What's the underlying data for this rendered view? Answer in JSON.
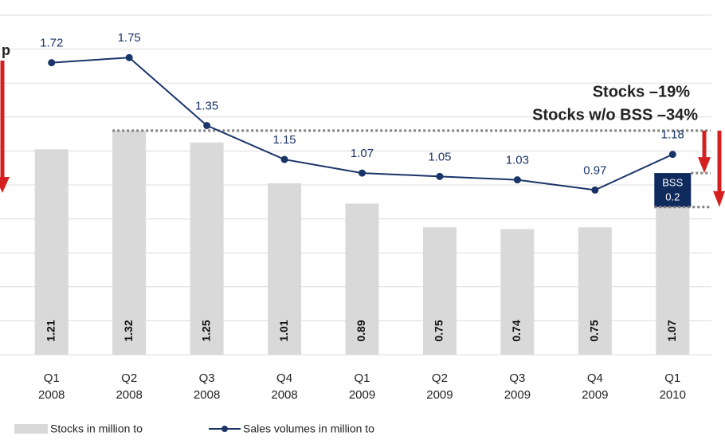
{
  "chart_data": {
    "type": "bar_line",
    "categories": [
      [
        "Q1",
        "2008"
      ],
      [
        "Q2",
        "2008"
      ],
      [
        "Q3",
        "2008"
      ],
      [
        "Q4",
        "2008"
      ],
      [
        "Q1",
        "2009"
      ],
      [
        "Q2",
        "2009"
      ],
      [
        "Q3",
        "2009"
      ],
      [
        "Q4",
        "2009"
      ],
      [
        "Q1",
        "2010"
      ]
    ],
    "series": [
      {
        "name": "Stocks in million to",
        "color": "#d9d9d9",
        "type": "bar",
        "values": [
          1.21,
          1.32,
          1.25,
          1.01,
          0.89,
          0.75,
          0.74,
          0.75,
          1.07
        ]
      },
      {
        "name": "Sales volumes in million to",
        "color": "#1a3468",
        "type": "line",
        "values": [
          1.72,
          1.75,
          1.35,
          1.15,
          1.07,
          1.05,
          1.03,
          0.97,
          1.18
        ]
      }
    ],
    "ylim": [
      0,
      2
    ],
    "yticks": [
      0,
      0.2,
      0.4,
      0.6,
      0.8,
      1,
      1.2,
      1.4,
      1.6,
      1.8,
      2
    ],
    "grid": true,
    "annotations": {
      "stocks": "Stocks –19%",
      "stocks_wo_bss": "Stocks w/o BSS –34%",
      "bss_label": "BSS",
      "bss_value": 0.2,
      "cut": "p"
    }
  }
}
